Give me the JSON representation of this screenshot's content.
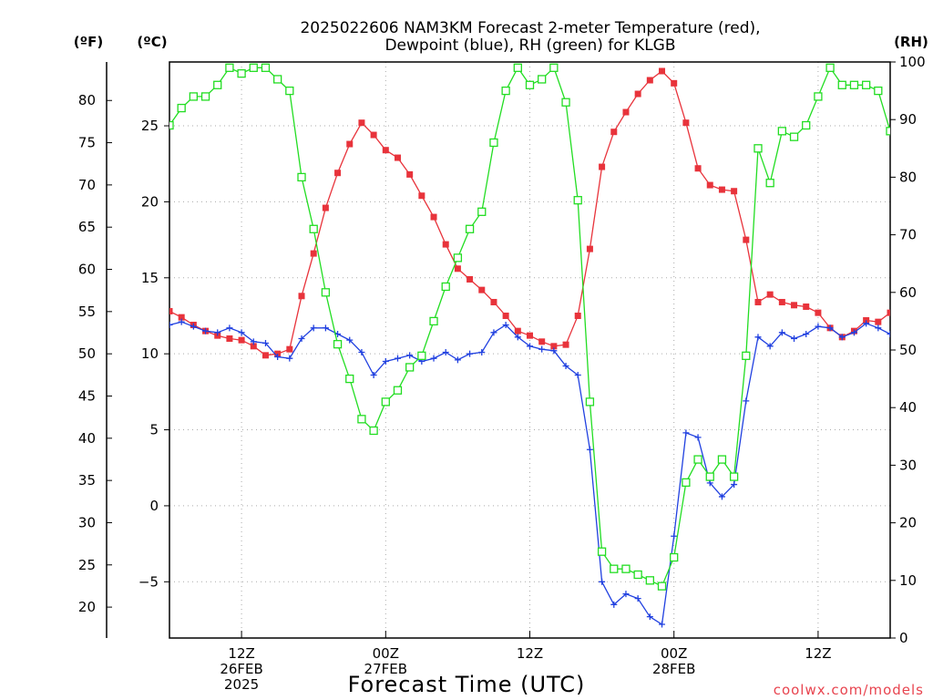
{
  "chart_data": {
    "type": "line",
    "title_lines": [
      "2025022606 NAM3KM Forecast 2-meter Temperature (red),",
      "Dewpoint (blue), RH (green) for KLGB"
    ],
    "xlabel": "Forecast Time (UTC)",
    "credit": "coolwx.com/models",
    "x_units": "hours from 2025-02-26 06Z",
    "xlim": [
      0,
      60
    ],
    "x_ticks": [
      {
        "x": 6,
        "label": [
          "12Z",
          "26FEB",
          "2025"
        ]
      },
      {
        "x": 18,
        "label": [
          "00Z",
          "27FEB"
        ]
      },
      {
        "x": 30,
        "label": [
          "12Z"
        ]
      },
      {
        "x": 42,
        "label": [
          "00Z",
          "28FEB"
        ]
      },
      {
        "x": 54,
        "label": [
          "12Z"
        ]
      }
    ],
    "axes": {
      "celsius": {
        "unit_label": "(ºC)",
        "ylim": [
          -8.7,
          29.2
        ],
        "ticks": [
          -5,
          0,
          5,
          10,
          15,
          20,
          25
        ]
      },
      "fahrenheit": {
        "unit_label": "(ºF)",
        "ticks": [
          20,
          25,
          30,
          35,
          40,
          45,
          50,
          55,
          60,
          65,
          70,
          75,
          80
        ]
      },
      "rh": {
        "unit_label": "(RH)",
        "ylim": [
          0,
          100
        ],
        "ticks": [
          0,
          10,
          20,
          30,
          40,
          50,
          60,
          70,
          80,
          90,
          100
        ]
      }
    },
    "grid": true,
    "series": [
      {
        "name": "Temperature",
        "axis": "celsius",
        "color": "#e8333b",
        "marker": "filled-square",
        "values": [
          12.8,
          12.4,
          11.9,
          11.5,
          11.2,
          11.0,
          10.9,
          10.5,
          9.9,
          10.0,
          10.3,
          13.8,
          16.6,
          19.6,
          21.9,
          23.8,
          25.2,
          24.4,
          23.4,
          22.9,
          21.8,
          20.4,
          19.0,
          17.2,
          15.6,
          14.9,
          14.2,
          13.4,
          12.5,
          11.5,
          11.2,
          10.8,
          10.5,
          10.6,
          12.5,
          16.9,
          22.3,
          24.6,
          25.9,
          27.1,
          28.0,
          28.6,
          27.8,
          25.2,
          22.2,
          21.1,
          20.8,
          20.7,
          17.5,
          13.4,
          13.9,
          13.4,
          13.2,
          13.1,
          12.7,
          11.7,
          11.1,
          11.5,
          12.2,
          12.1,
          12.7
        ]
      },
      {
        "name": "Dewpoint",
        "axis": "celsius",
        "color": "#2040e0",
        "marker": "plus",
        "values": [
          11.9,
          12.1,
          11.8,
          11.5,
          11.4,
          11.7,
          11.4,
          10.8,
          10.7,
          9.8,
          9.7,
          11.0,
          11.7,
          11.7,
          11.3,
          10.9,
          10.1,
          8.6,
          9.5,
          9.7,
          9.9,
          9.5,
          9.7,
          10.1,
          9.6,
          10.0,
          10.1,
          11.4,
          11.9,
          11.1,
          10.5,
          10.3,
          10.2,
          9.2,
          8.6,
          3.7,
          -5.0,
          -6.5,
          -5.8,
          -6.1,
          -7.3,
          -7.8,
          -2.0,
          4.8,
          4.5,
          1.5,
          0.6,
          1.4,
          6.9,
          11.1,
          10.5,
          11.4,
          11.0,
          11.3,
          11.8,
          11.7,
          11.1,
          11.4,
          12.0,
          11.7,
          11.3
        ]
      },
      {
        "name": "RH",
        "axis": "rh",
        "color": "#22dd22",
        "marker": "open-square",
        "values": [
          89,
          92,
          94,
          94,
          96,
          99,
          98,
          99,
          99,
          97,
          95,
          80,
          71,
          60,
          51,
          45,
          38,
          36,
          41,
          43,
          47,
          49,
          55,
          61,
          66,
          71,
          74,
          86,
          95,
          99,
          96,
          97,
          99,
          93,
          76,
          41,
          15,
          12,
          12,
          11,
          10,
          9,
          14,
          27,
          31,
          28,
          31,
          28,
          49,
          85,
          79,
          88,
          87,
          89,
          94,
          99,
          96,
          96,
          96,
          95,
          88
        ]
      }
    ]
  }
}
